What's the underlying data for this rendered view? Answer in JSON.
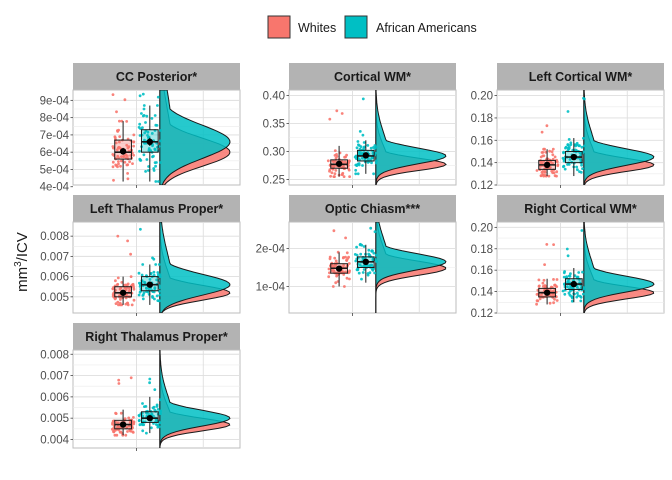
{
  "chart_data": {
    "type": "raincloud",
    "ylabel": "mm",
    "ylabel_sup": "3",
    "ylabel_suffix": "/ICV",
    "legend": {
      "position": "top",
      "entries": [
        {
          "name": "Whites",
          "color": "#F8766D"
        },
        {
          "name": "African Americans",
          "color": "#00BFC4"
        }
      ]
    },
    "panels": [
      {
        "title": "CC Posterior*",
        "ylim": [
          0.00041,
          0.00096
        ],
        "ticks": [
          0.0004,
          0.0005,
          0.0006,
          0.0007,
          0.0008,
          0.0009
        ],
        "tick_labels": [
          "4e-04",
          "5e-04",
          "6e-04",
          "7e-04",
          "8e-04",
          "9e-04"
        ],
        "groups": [
          {
            "name": "Whites",
            "min": 0.00043,
            "q1": 0.00056,
            "median": 0.0006,
            "q3": 0.00067,
            "max": 0.00078,
            "mean": 0.000605
          },
          {
            "name": "African Americans",
            "min": 0.00043,
            "q1": 0.0006,
            "median": 0.00066,
            "q3": 0.00073,
            "max": 0.00087,
            "mean": 0.00066
          }
        ]
      },
      {
        "title": "Cortical WM*",
        "ylim": [
          0.24,
          0.41
        ],
        "ticks": [
          0.25,
          0.3,
          0.35,
          0.4
        ],
        "tick_labels": [
          "0.25",
          "0.30",
          "0.35",
          "0.40"
        ],
        "groups": [
          {
            "name": "Whites",
            "min": 0.255,
            "q1": 0.27,
            "median": 0.277,
            "q3": 0.285,
            "max": 0.31,
            "mean": 0.278
          },
          {
            "name": "African Americans",
            "min": 0.26,
            "q1": 0.283,
            "median": 0.292,
            "q3": 0.302,
            "max": 0.32,
            "mean": 0.293
          }
        ]
      },
      {
        "title": "Left Cortical WM*",
        "ylim": [
          0.12,
          0.205
        ],
        "ticks": [
          0.12,
          0.14,
          0.16,
          0.18,
          0.2
        ],
        "tick_labels": [
          "0.12",
          "0.14",
          "0.16",
          "0.18",
          "0.20"
        ],
        "groups": [
          {
            "name": "Whites",
            "min": 0.128,
            "q1": 0.134,
            "median": 0.138,
            "q3": 0.142,
            "max": 0.152,
            "mean": 0.138
          },
          {
            "name": "African Americans",
            "min": 0.128,
            "q1": 0.14,
            "median": 0.145,
            "q3": 0.15,
            "max": 0.162,
            "mean": 0.145
          }
        ]
      },
      {
        "title": "Left Thalamus Proper*",
        "ylim": [
          0.0042,
          0.0087
        ],
        "ticks": [
          0.005,
          0.006,
          0.007,
          0.008
        ],
        "tick_labels": [
          "0.005",
          "0.006",
          "0.007",
          "0.008"
        ],
        "groups": [
          {
            "name": "Whites",
            "min": 0.0046,
            "q1": 0.005,
            "median": 0.0052,
            "q3": 0.0055,
            "max": 0.006,
            "mean": 0.0052
          },
          {
            "name": "African Americans",
            "min": 0.0046,
            "q1": 0.0053,
            "median": 0.0056,
            "q3": 0.006,
            "max": 0.0066,
            "mean": 0.0056
          }
        ]
      },
      {
        "title": "Optic Chiasm***",
        "ylim": [
          3e-05,
          0.00027
        ],
        "ticks": [
          0.0001,
          0.0002
        ],
        "tick_labels": [
          "1e-04",
          "2e-04"
        ],
        "groups": [
          {
            "name": "Whites",
            "min": 0.0001,
            "q1": 0.000135,
            "median": 0.000148,
            "q3": 0.00016,
            "max": 0.00019,
            "mean": 0.000147
          },
          {
            "name": "African Americans",
            "min": 0.00011,
            "q1": 0.00015,
            "median": 0.000165,
            "q3": 0.000178,
            "max": 0.00021,
            "mean": 0.000165
          }
        ]
      },
      {
        "title": "Right Cortical WM*",
        "ylim": [
          0.12,
          0.205
        ],
        "ticks": [
          0.12,
          0.14,
          0.16,
          0.18,
          0.2
        ],
        "tick_labels": [
          "0.12",
          "0.14",
          "0.16",
          "0.18",
          "0.20"
        ],
        "groups": [
          {
            "name": "Whites",
            "min": 0.128,
            "q1": 0.135,
            "median": 0.139,
            "q3": 0.143,
            "max": 0.152,
            "mean": 0.139
          },
          {
            "name": "African Americans",
            "min": 0.13,
            "q1": 0.142,
            "median": 0.147,
            "q3": 0.152,
            "max": 0.162,
            "mean": 0.147
          }
        ]
      },
      {
        "title": "Right Thalamus Proper*",
        "ylim": [
          0.0036,
          0.0082
        ],
        "ticks": [
          0.004,
          0.005,
          0.006,
          0.007,
          0.008
        ],
        "tick_labels": [
          "0.004",
          "0.005",
          "0.006",
          "0.007",
          "0.008"
        ],
        "groups": [
          {
            "name": "Whites",
            "min": 0.0042,
            "q1": 0.0045,
            "median": 0.0047,
            "q3": 0.0049,
            "max": 0.0054,
            "mean": 0.0047
          },
          {
            "name": "African Americans",
            "min": 0.0043,
            "q1": 0.0048,
            "median": 0.005,
            "q3": 0.0053,
            "max": 0.006,
            "mean": 0.005
          }
        ]
      }
    ]
  }
}
